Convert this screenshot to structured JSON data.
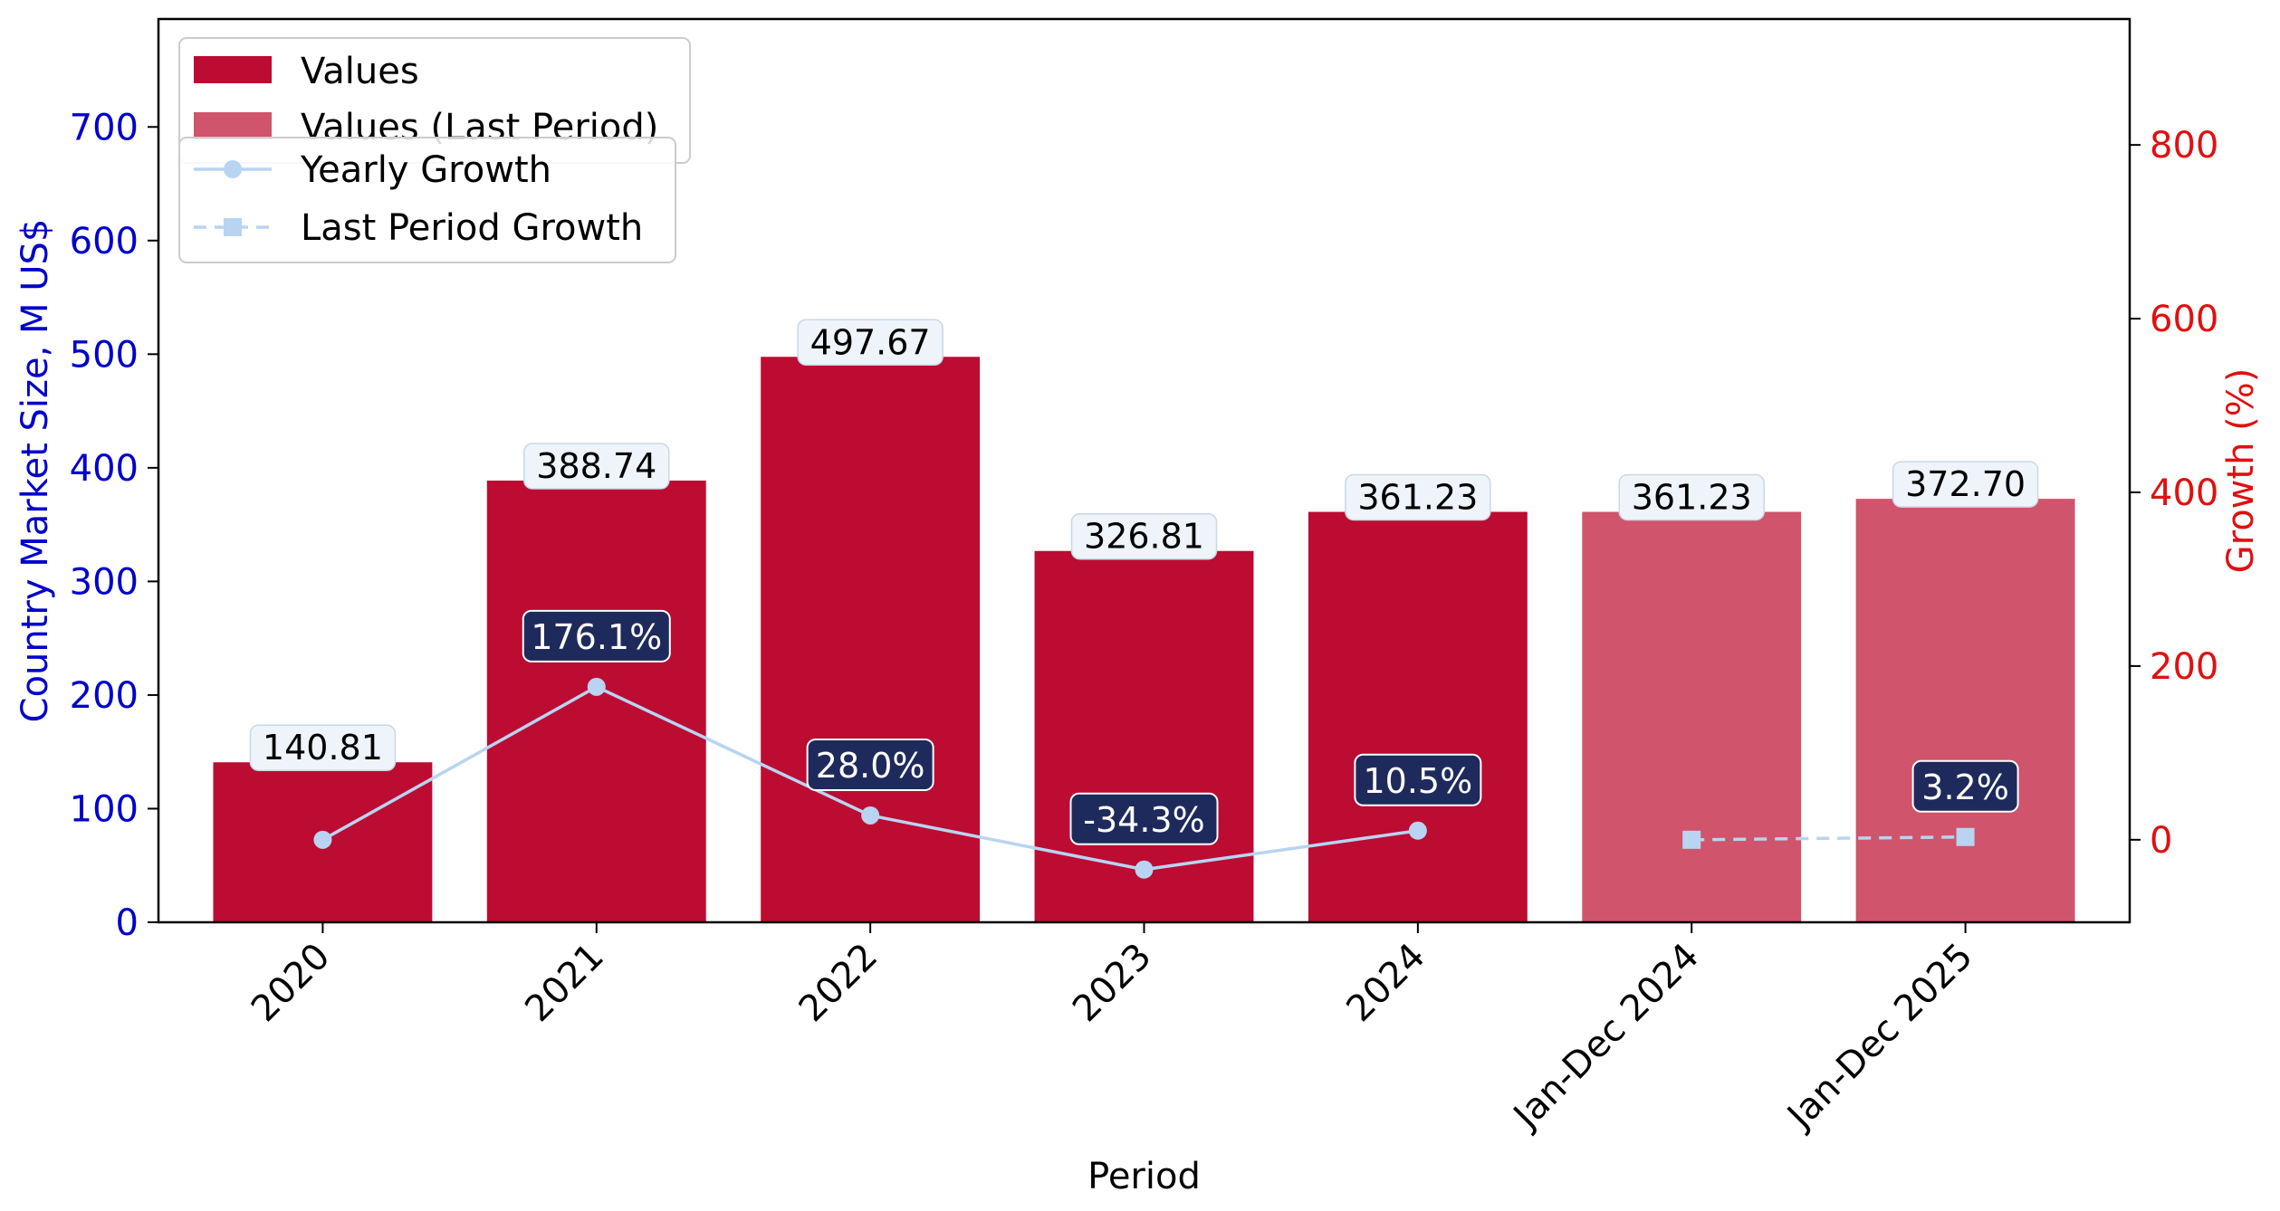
{
  "chart_data": {
    "type": "bar",
    "categories": [
      "2020",
      "2021",
      "2022",
      "2023",
      "2024",
      "Jan-Dec 2024",
      "Jan-Dec 2025"
    ],
    "series": [
      {
        "name": "Values",
        "kind": "bar",
        "axis": "left",
        "values": [
          140.81,
          388.74,
          497.67,
          326.81,
          361.23,
          null,
          null
        ]
      },
      {
        "name": "Values (Last Period)",
        "kind": "bar",
        "axis": "left",
        "values": [
          null,
          null,
          null,
          null,
          null,
          361.23,
          372.7
        ]
      },
      {
        "name": "Yearly Growth",
        "kind": "line",
        "axis": "right",
        "values": [
          0,
          176.1,
          28.0,
          -34.3,
          10.5,
          null,
          null
        ]
      },
      {
        "name": "Last Period Growth",
        "kind": "line",
        "axis": "right",
        "dashed": true,
        "values": [
          null,
          null,
          null,
          null,
          null,
          0,
          3.2
        ]
      }
    ],
    "bar_labels": [
      "140.81",
      "388.74",
      "497.67",
      "326.81",
      "361.23",
      "361.23",
      "372.70"
    ],
    "growth_labels": [
      null,
      "176.1%",
      "28.0%",
      "-34.3%",
      "10.5%",
      null,
      "3.2%"
    ],
    "xlabel": "Period",
    "ylabel": "Country Market Size, M US$",
    "y2label": "Growth (%)",
    "ylim": [
      0,
      795
    ],
    "y2lim": [
      -95,
      945
    ],
    "yticks": [
      0,
      100,
      200,
      300,
      400,
      500,
      600,
      700
    ],
    "y2ticks": [
      0,
      200,
      400,
      600,
      800
    ],
    "grid": false,
    "legend": "top-left",
    "colors": {
      "values": "#bc0c32",
      "values_last": "#d0546c",
      "growth_line": "#b8d4f2",
      "left_axis": "#0000cc",
      "right_axis": "#e01010",
      "growth_box": "#1f2a5c"
    }
  }
}
